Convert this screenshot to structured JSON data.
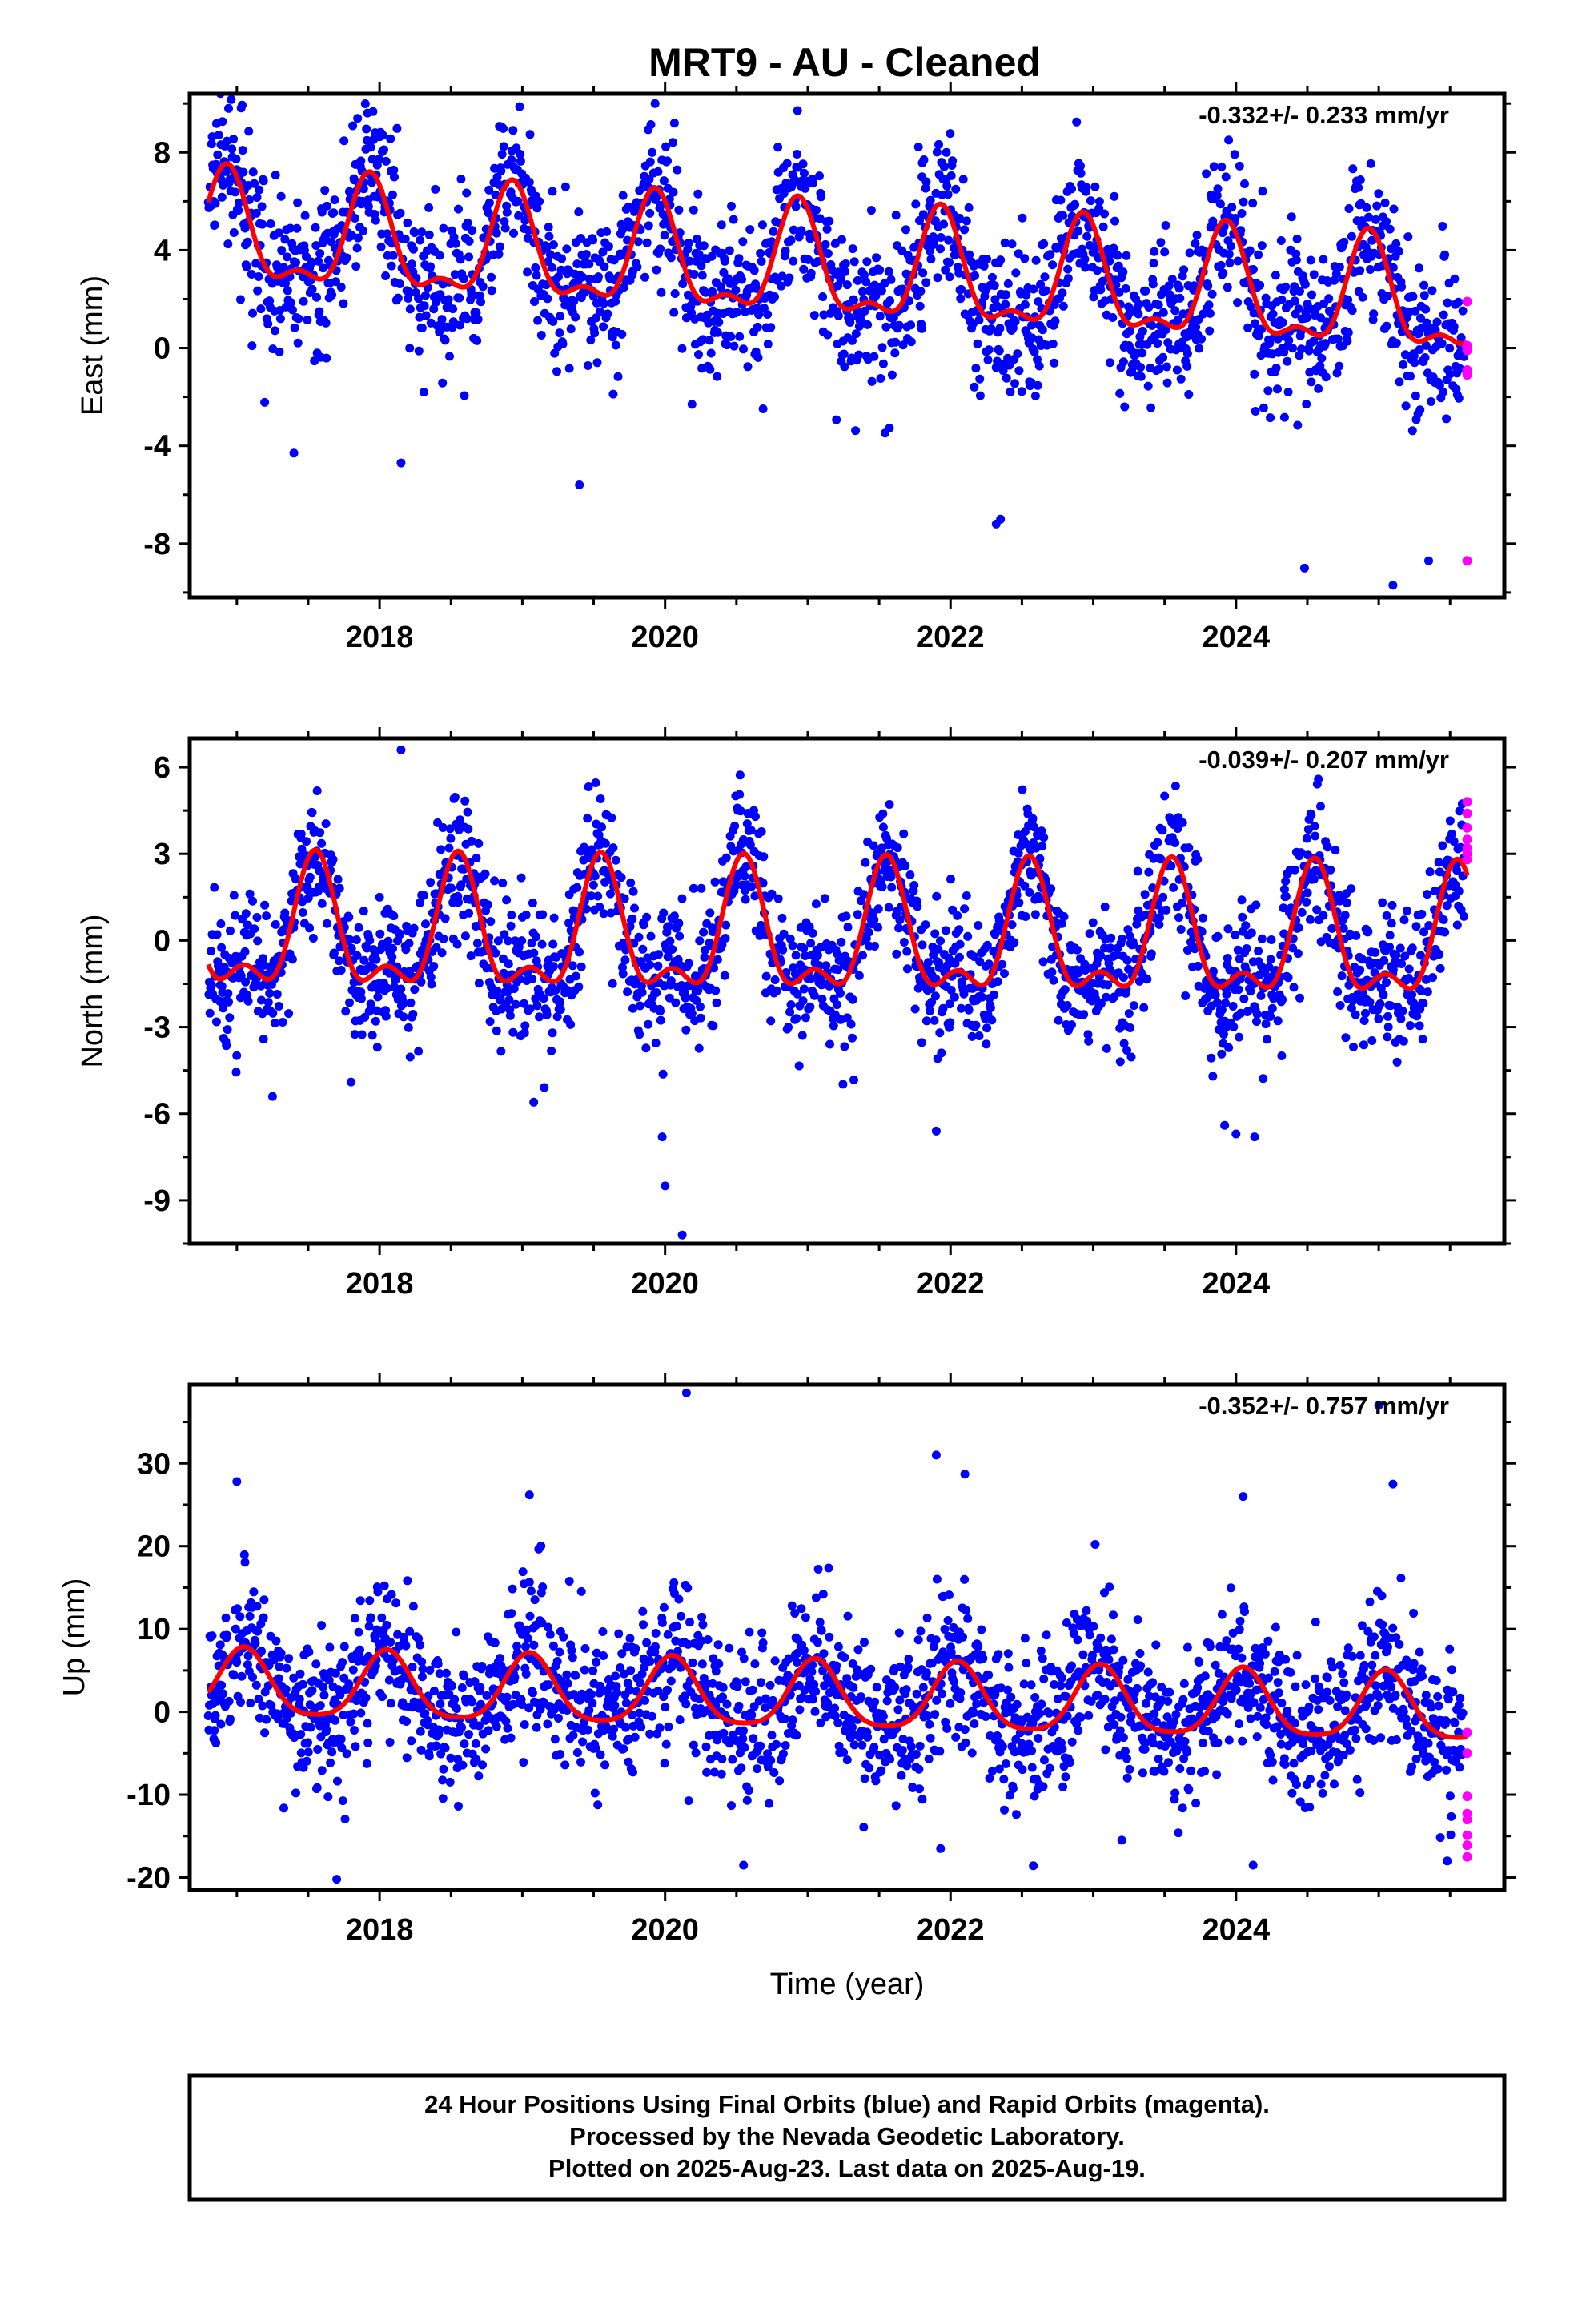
{
  "figure": {
    "title": "MRT9  - AU - Cleaned",
    "footer": {
      "lines": [
        "24 Hour Positions Using Final Orbits (blue) and Rapid Orbits (magenta).",
        "Processed by the Nevada Geodetic Laboratory.",
        "Plotted on 2025-Aug-23. Last data on 2025-Aug-19."
      ]
    },
    "colors": {
      "final": "#0000ff",
      "rapid": "#ff00ff",
      "model": "#ff0000"
    }
  },
  "chart_data": [
    {
      "type": "scatter",
      "ylabel": "East (mm)",
      "xlabel": "",
      "rate_label": "-0.332+/- 0.233 mm/yr",
      "xlim": [
        2016.67,
        2025.88
      ],
      "ylim": [
        -10.2,
        10.4
      ],
      "xticks": [
        2018,
        2020,
        2022,
        2024
      ],
      "xtick_labels": [
        "2018",
        "2020",
        "2022",
        "2024"
      ],
      "yticks": [
        8,
        4,
        0,
        -4,
        -8
      ],
      "ytick_labels": [
        "8",
        "4",
        "0",
        "-4",
        "-8"
      ],
      "model": {
        "offset": 3.2,
        "rate": -0.33,
        "annual_amp": 2.1,
        "annual_phase_peak": 0.93,
        "semi_amp": 0.9,
        "semi_phase_peak": 0.93,
        "start": 2016.8,
        "end": 2025.62
      },
      "series": [
        {
          "label": "final",
          "noise_sd": 1.6,
          "start": 2016.8,
          "end": 2025.6,
          "step_days": 1.4
        },
        {
          "label": "rapid",
          "x": [
            2025.62,
            2025.62,
            2025.62,
            2025.62,
            2025.62,
            2025.62,
            2025.62
          ],
          "y": [
            1.9,
            0.1,
            -0.1,
            -0.9,
            -1.0,
            -1.1,
            -8.7
          ]
        }
      ],
      "outliers": [
        {
          "x": 2019.93,
          "y": 10.0
        },
        {
          "x": 2019.91,
          "y": 8.0
        },
        {
          "x": 2021.8,
          "y": 7.0
        },
        {
          "x": 2021.83,
          "y": 6.8
        },
        {
          "x": 2022.35,
          "y": -7.0
        },
        {
          "x": 2022.32,
          "y": -7.2
        },
        {
          "x": 2024.48,
          "y": -9.0
        },
        {
          "x": 2025.1,
          "y": -9.7
        },
        {
          "x": 2025.35,
          "y": -8.7
        },
        {
          "x": 2017.4,
          "y": -4.3
        },
        {
          "x": 2019.4,
          "y": -5.6
        },
        {
          "x": 2018.15,
          "y": -4.7
        }
      ]
    },
    {
      "type": "scatter",
      "ylabel": "North (mm)",
      "xlabel": "",
      "rate_label": "-0.039+/- 0.207 mm/yr",
      "xlim": [
        2016.67,
        2025.88
      ],
      "ylim": [
        -10.5,
        7.0
      ],
      "xticks": [
        2018,
        2020,
        2022,
        2024
      ],
      "xtick_labels": [
        "2018",
        "2020",
        "2022",
        "2024"
      ],
      "yticks": [
        6,
        3,
        0,
        -3,
        -6,
        -9
      ],
      "ytick_labels": [
        "6",
        "3",
        "0",
        "-3",
        "-6",
        "-9"
      ],
      "model": {
        "offset": 0.0,
        "rate": -0.04,
        "annual_amp": 2.0,
        "annual_phase_peak": 0.55,
        "semi_amp": 1.0,
        "semi_phase_peak": 0.55,
        "start": 2016.8,
        "end": 2025.62
      },
      "series": [
        {
          "label": "final",
          "noise_sd": 1.2,
          "start": 2016.8,
          "end": 2025.6,
          "step_days": 1.4
        },
        {
          "label": "rapid",
          "x": [
            2025.62,
            2025.62,
            2025.62,
            2025.62,
            2025.62,
            2025.62,
            2025.62
          ],
          "y": [
            4.8,
            4.4,
            3.9,
            3.5,
            3.2,
            3.0,
            2.8
          ]
        }
      ],
      "outliers": [
        {
          "x": 2018.15,
          "y": 6.6
        },
        {
          "x": 2019.98,
          "y": -6.8
        },
        {
          "x": 2020.0,
          "y": -8.5
        },
        {
          "x": 2020.12,
          "y": -10.2
        },
        {
          "x": 2023.92,
          "y": -6.4
        },
        {
          "x": 2024.0,
          "y": -6.7
        },
        {
          "x": 2024.13,
          "y": -6.8
        },
        {
          "x": 2017.25,
          "y": -5.4
        },
        {
          "x": 2019.08,
          "y": -5.6
        },
        {
          "x": 2021.9,
          "y": -6.6
        },
        {
          "x": 2017.8,
          "y": -4.9
        }
      ]
    },
    {
      "type": "scatter",
      "ylabel": "Up (mm)",
      "xlabel": "Time (year)",
      "rate_label": "-0.352+/- 0.757 mm/yr",
      "xlim": [
        2016.67,
        2025.88
      ],
      "ylim": [
        -21.5,
        39.5
      ],
      "xticks": [
        2018,
        2020,
        2022,
        2024
      ],
      "xtick_labels": [
        "2018",
        "2020",
        "2022",
        "2024"
      ],
      "yticks": [
        30,
        20,
        10,
        0,
        -10,
        -20
      ],
      "ytick_labels": [
        "30",
        "20",
        "10",
        "0",
        "-10",
        "-20"
      ],
      "model": {
        "offset": 1.7,
        "rate": -0.35,
        "annual_amp": 4.0,
        "annual_phase_peak": 0.05,
        "semi_amp": 0.8,
        "semi_phase_peak": 0.05,
        "start": 2016.8,
        "end": 2025.62
      },
      "series": [
        {
          "label": "final",
          "noise_sd": 4.6,
          "start": 2016.8,
          "end": 2025.6,
          "step_days": 1.4
        },
        {
          "label": "rapid",
          "x": [
            2025.62,
            2025.62,
            2025.62,
            2025.62,
            2025.62,
            2025.62,
            2025.62,
            2025.62
          ],
          "y": [
            -2.5,
            -5.0,
            -10.2,
            -12.3,
            -13.0,
            -14.9,
            -16.1,
            -17.5
          ]
        }
      ],
      "outliers": [
        {
          "x": 2020.15,
          "y": 38.5
        },
        {
          "x": 2025.0,
          "y": 37.0
        },
        {
          "x": 2021.9,
          "y": 31.0
        },
        {
          "x": 2017.0,
          "y": 27.8
        },
        {
          "x": 2019.05,
          "y": 26.2
        },
        {
          "x": 2024.05,
          "y": 26.0
        },
        {
          "x": 2025.1,
          "y": 27.5
        },
        {
          "x": 2022.1,
          "y": 28.7
        },
        {
          "x": 2017.7,
          "y": -20.2
        },
        {
          "x": 2020.55,
          "y": -18.5
        },
        {
          "x": 2024.12,
          "y": -18.5
        },
        {
          "x": 2021.93,
          "y": -16.5
        },
        {
          "x": 2025.48,
          "y": -18.0
        },
        {
          "x": 2023.2,
          "y": -15.5
        }
      ]
    }
  ]
}
